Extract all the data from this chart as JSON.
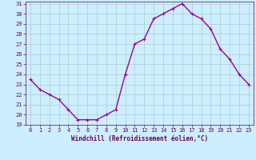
{
  "x": [
    0,
    1,
    2,
    3,
    4,
    5,
    6,
    7,
    8,
    9,
    10,
    11,
    12,
    13,
    14,
    15,
    16,
    17,
    18,
    19,
    20,
    21,
    22,
    23
  ],
  "y": [
    23.5,
    22.5,
    22.0,
    21.5,
    20.5,
    19.5,
    19.5,
    19.5,
    20.0,
    20.5,
    24.0,
    27.0,
    27.5,
    29.5,
    30.0,
    30.5,
    31.0,
    30.0,
    29.5,
    28.5,
    26.5,
    25.5,
    24.0,
    23.0
  ],
  "line_color": "#990099",
  "marker": "+",
  "bg_color": "#cceeff",
  "grid_color": "#aacccc",
  "xlabel": "Windchill (Refroidissement éolien,°C)",
  "xlabel_color": "#660066",
  "tick_color": "#660066",
  "ylim": [
    19,
    31
  ],
  "yticks": [
    19,
    20,
    21,
    22,
    23,
    24,
    25,
    26,
    27,
    28,
    29,
    30,
    31
  ],
  "xlim": [
    -0.5,
    23.5
  ],
  "xticks": [
    0,
    1,
    2,
    3,
    4,
    5,
    6,
    7,
    8,
    9,
    10,
    11,
    12,
    13,
    14,
    15,
    16,
    17,
    18,
    19,
    20,
    21,
    22,
    23
  ],
  "axis_bg": "#cceeff",
  "linewidth": 1.0,
  "markersize": 3,
  "markeredgewidth": 0.8,
  "tick_labelsize": 5.0,
  "xlabel_fontsize": 5.5
}
